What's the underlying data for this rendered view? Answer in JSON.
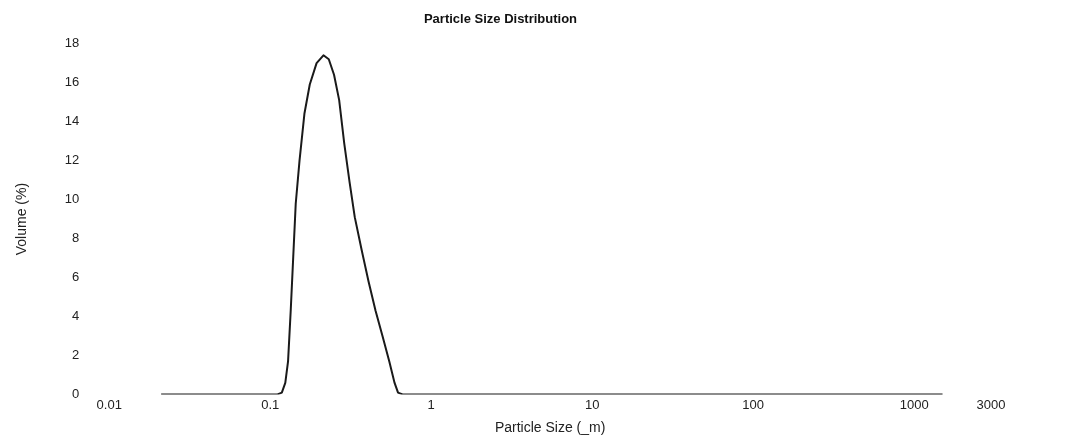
{
  "chart_data": {
    "type": "line",
    "title": "Particle Size Distribution",
    "xlabel": "Particle Size (_m)",
    "ylabel": "Volume (%)",
    "log": "x",
    "xlim": [
      0.01,
      3000
    ],
    "xticks": [
      0.01,
      0.1,
      1,
      10,
      100,
      1000,
      3000
    ],
    "ylim": [
      0,
      18
    ],
    "yticks": [
      0,
      2,
      4,
      6,
      8,
      10,
      12,
      14,
      16,
      18
    ],
    "grid": false,
    "legend": false,
    "marker": "none",
    "line_style": "solid",
    "series": [
      {
        "color": "#1a1a1a",
        "x": [
          0.021,
          0.05,
          0.11,
          0.118,
          0.124,
          0.129,
          0.134,
          0.139,
          0.144,
          0.152,
          0.163,
          0.176,
          0.194,
          0.214,
          0.231,
          0.249,
          0.268,
          0.288,
          0.311,
          0.335,
          0.37,
          0.408,
          0.451,
          0.498,
          0.549,
          0.592,
          0.622,
          0.67,
          10,
          1500
        ],
        "values": [
          0,
          0,
          0,
          0.1,
          0.6,
          1.7,
          4.3,
          7.1,
          9.8,
          12.0,
          14.4,
          15.9,
          17.0,
          17.4,
          17.2,
          16.4,
          15.1,
          12.9,
          10.9,
          9.1,
          7.4,
          5.8,
          4.3,
          3.0,
          1.7,
          0.6,
          0.1,
          0,
          0,
          0
        ]
      }
    ]
  }
}
